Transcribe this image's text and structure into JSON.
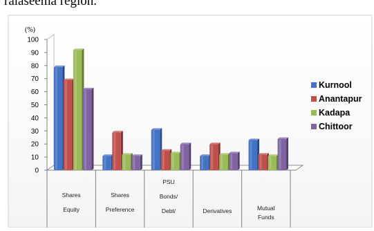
{
  "document": {
    "heading_fragment": "ralaseema region."
  },
  "chart_data": {
    "type": "bar",
    "y_unit_label": "(%)",
    "ylim": [
      0,
      100
    ],
    "yticks": [
      0,
      10,
      20,
      30,
      40,
      50,
      60,
      70,
      80,
      90,
      100
    ],
    "categories": [
      {
        "lines": [
          "Shares",
          "Equity"
        ]
      },
      {
        "lines": [
          "Shares",
          "Preference"
        ]
      },
      {
        "lines": [
          "PSU",
          "Bonds/",
          "Debt/"
        ]
      },
      {
        "lines": [
          "Derivatives"
        ]
      },
      {
        "lines": [
          "Mutual",
          "Funds"
        ]
      }
    ],
    "series": [
      {
        "name": "Kurnool",
        "color": "#4472c4",
        "values": [
          79,
          11,
          31,
          11,
          23
        ]
      },
      {
        "name": "Anantapur",
        "color": "#c0504d",
        "values": [
          69,
          29,
          15,
          20,
          12
        ]
      },
      {
        "name": "Kadapa",
        "color": "#9bbb59",
        "values": [
          92,
          12,
          13,
          12,
          11
        ]
      },
      {
        "name": "Chittoor",
        "color": "#8064a2",
        "values": [
          62,
          11,
          20,
          13,
          24
        ]
      }
    ],
    "legend_position": "right",
    "grid": false
  }
}
